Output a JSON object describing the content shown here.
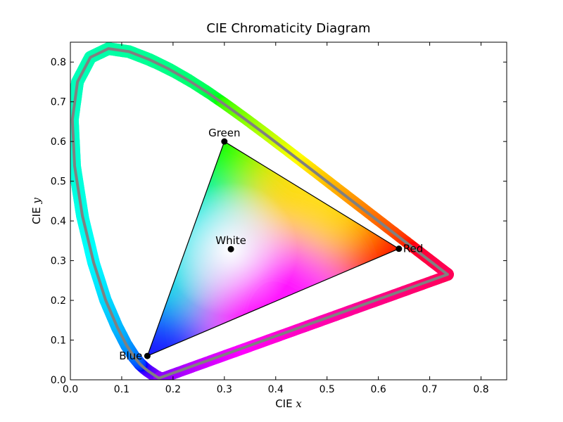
{
  "chart_data": {
    "type": "scatter",
    "title": "CIE Chromaticity Diagram",
    "xlabel_prefix": "CIE",
    "xlabel_var": "x",
    "ylabel_prefix": "CIE",
    "ylabel_var": "y",
    "xlim": [
      0.0,
      0.85
    ],
    "ylim": [
      0.0,
      0.85
    ],
    "xticks": [
      "0.0",
      "0.1",
      "0.2",
      "0.3",
      "0.4",
      "0.5",
      "0.6",
      "0.7",
      "0.8"
    ],
    "yticks": [
      "0.0",
      "0.1",
      "0.2",
      "0.3",
      "0.4",
      "0.5",
      "0.6",
      "0.7",
      "0.8"
    ],
    "grid": false,
    "spectral_locus": [
      [
        0.1741,
        0.005
      ],
      [
        0.174,
        0.005
      ],
      [
        0.1738,
        0.0049
      ],
      [
        0.1736,
        0.0049
      ],
      [
        0.1733,
        0.0048
      ],
      [
        0.173,
        0.0048
      ],
      [
        0.1726,
        0.0048
      ],
      [
        0.1721,
        0.0048
      ],
      [
        0.1714,
        0.0051
      ],
      [
        0.1703,
        0.0058
      ],
      [
        0.1689,
        0.0069
      ],
      [
        0.1669,
        0.0086
      ],
      [
        0.1644,
        0.0109
      ],
      [
        0.1611,
        0.0138
      ],
      [
        0.1566,
        0.0177
      ],
      [
        0.151,
        0.0227
      ],
      [
        0.144,
        0.0297
      ],
      [
        0.1355,
        0.0399
      ],
      [
        0.1241,
        0.0578
      ],
      [
        0.1096,
        0.0868
      ],
      [
        0.0913,
        0.1327
      ],
      [
        0.0687,
        0.2007
      ],
      [
        0.0454,
        0.295
      ],
      [
        0.0235,
        0.4127
      ],
      [
        0.0082,
        0.5384
      ],
      [
        0.0039,
        0.6548
      ],
      [
        0.0139,
        0.7502
      ],
      [
        0.0389,
        0.812
      ],
      [
        0.0743,
        0.8338
      ],
      [
        0.1142,
        0.8262
      ],
      [
        0.1547,
        0.8059
      ],
      [
        0.1929,
        0.7816
      ],
      [
        0.2296,
        0.7543
      ],
      [
        0.2658,
        0.7243
      ],
      [
        0.3016,
        0.6923
      ],
      [
        0.3373,
        0.6589
      ],
      [
        0.3731,
        0.6245
      ],
      [
        0.4087,
        0.5896
      ],
      [
        0.4441,
        0.5547
      ],
      [
        0.4788,
        0.5202
      ],
      [
        0.5125,
        0.4866
      ],
      [
        0.5448,
        0.4544
      ],
      [
        0.5752,
        0.4242
      ],
      [
        0.6029,
        0.3965
      ],
      [
        0.627,
        0.3725
      ],
      [
        0.6482,
        0.3514
      ],
      [
        0.6658,
        0.334
      ],
      [
        0.6801,
        0.3197
      ],
      [
        0.6915,
        0.3083
      ],
      [
        0.7006,
        0.2993
      ],
      [
        0.7079,
        0.292
      ],
      [
        0.714,
        0.2859
      ],
      [
        0.719,
        0.2809
      ],
      [
        0.723,
        0.277
      ],
      [
        0.726,
        0.274
      ],
      [
        0.7283,
        0.2717
      ],
      [
        0.73,
        0.27
      ],
      [
        0.7311,
        0.2689
      ],
      [
        0.732,
        0.268
      ],
      [
        0.7327,
        0.2673
      ],
      [
        0.7334,
        0.2666
      ],
      [
        0.734,
        0.266
      ],
      [
        0.7344,
        0.2656
      ],
      [
        0.7346,
        0.2654
      ],
      [
        0.7347,
        0.2653
      ]
    ],
    "gamut": [
      {
        "name": "Red",
        "x": 0.64,
        "y": 0.33
      },
      {
        "name": "Green",
        "x": 0.3,
        "y": 0.6
      },
      {
        "name": "Blue",
        "x": 0.15,
        "y": 0.06
      }
    ],
    "white": {
      "name": "White",
      "x": 0.3127,
      "y": 0.329
    },
    "colors": {
      "outline": "#808080",
      "point": "#000000",
      "triangle": "#000000"
    }
  }
}
